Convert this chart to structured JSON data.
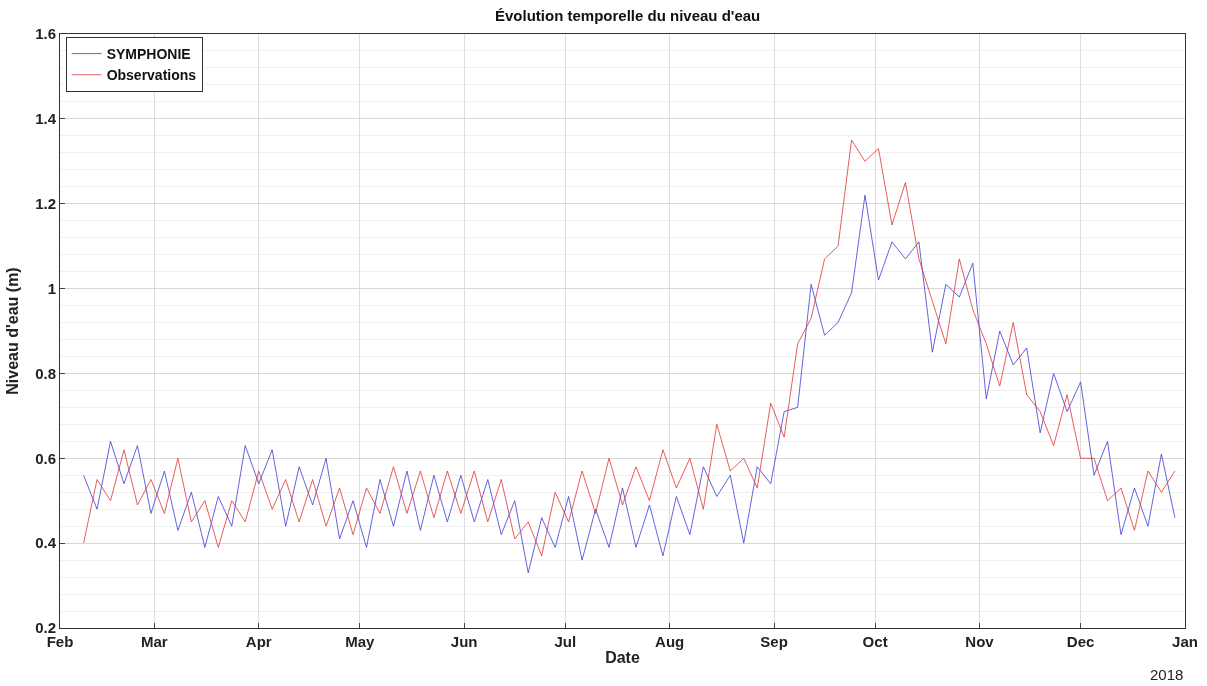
{
  "chart_data": {
    "type": "line",
    "title": "Évolution temporelle du niveau d'eau",
    "xlabel": "Date",
    "ylabel": "Niveau d'eau (m)",
    "x": [
      "2017-02-08",
      "2017-02-12",
      "2017-02-16",
      "2017-02-20",
      "2017-02-24",
      "2017-02-28",
      "2017-03-04",
      "2017-03-08",
      "2017-03-12",
      "2017-03-16",
      "2017-03-20",
      "2017-03-24",
      "2017-03-28",
      "2017-04-01",
      "2017-04-05",
      "2017-04-09",
      "2017-04-13",
      "2017-04-17",
      "2017-04-21",
      "2017-04-25",
      "2017-04-29",
      "2017-05-03",
      "2017-05-07",
      "2017-05-11",
      "2017-05-15",
      "2017-05-19",
      "2017-05-23",
      "2017-05-27",
      "2017-05-31",
      "2017-06-04",
      "2017-06-08",
      "2017-06-12",
      "2017-06-16",
      "2017-06-20",
      "2017-06-24",
      "2017-06-28",
      "2017-07-02",
      "2017-07-06",
      "2017-07-10",
      "2017-07-14",
      "2017-07-18",
      "2017-07-22",
      "2017-07-26",
      "2017-07-30",
      "2017-08-03",
      "2017-08-07",
      "2017-08-11",
      "2017-08-15",
      "2017-08-19",
      "2017-08-23",
      "2017-08-27",
      "2017-08-31",
      "2017-09-04",
      "2017-09-08",
      "2017-09-12",
      "2017-09-16",
      "2017-09-20",
      "2017-09-24",
      "2017-09-28",
      "2017-10-02",
      "2017-10-06",
      "2017-10-10",
      "2017-10-14",
      "2017-10-18",
      "2017-10-22",
      "2017-10-26",
      "2017-10-30",
      "2017-11-03",
      "2017-11-07",
      "2017-11-11",
      "2017-11-15",
      "2017-11-19",
      "2017-11-23",
      "2017-11-27",
      "2017-12-01",
      "2017-12-05",
      "2017-12-09",
      "2017-12-13",
      "2017-12-17",
      "2017-12-21",
      "2017-12-25",
      "2017-12-29"
    ],
    "series": [
      {
        "name": "SYMPHONIE",
        "color": "#3c3cd8",
        "values": [
          0.56,
          0.48,
          0.64,
          0.54,
          0.63,
          0.47,
          0.57,
          0.43,
          0.52,
          0.39,
          0.51,
          0.44,
          0.63,
          0.54,
          0.62,
          0.44,
          0.58,
          0.49,
          0.6,
          0.41,
          0.5,
          0.39,
          0.55,
          0.44,
          0.57,
          0.43,
          0.56,
          0.45,
          0.56,
          0.45,
          0.55,
          0.42,
          0.5,
          0.33,
          0.46,
          0.39,
          0.51,
          0.36,
          0.48,
          0.39,
          0.53,
          0.39,
          0.49,
          0.37,
          0.51,
          0.42,
          0.58,
          0.51,
          0.56,
          0.4,
          0.58,
          0.54,
          0.71,
          0.72,
          1.01,
          0.89,
          0.92,
          0.99,
          1.22,
          1.02,
          1.11,
          1.07,
          1.11,
          0.85,
          1.01,
          0.98,
          1.06,
          0.74,
          0.9,
          0.82,
          0.86,
          0.66,
          0.8,
          0.71,
          0.78,
          0.56,
          0.64,
          0.42,
          0.53,
          0.44,
          0.61,
          0.46
        ]
      },
      {
        "name": "Observations",
        "color": "#e03434",
        "values": [
          0.4,
          0.55,
          0.5,
          0.62,
          0.49,
          0.55,
          0.47,
          0.6,
          0.45,
          0.5,
          0.39,
          0.5,
          0.45,
          0.57,
          0.48,
          0.55,
          0.45,
          0.55,
          0.44,
          0.53,
          0.42,
          0.53,
          0.47,
          0.58,
          0.47,
          0.57,
          0.46,
          0.57,
          0.47,
          0.57,
          0.45,
          0.55,
          0.41,
          0.45,
          0.37,
          0.52,
          0.45,
          0.57,
          0.47,
          0.6,
          0.49,
          0.58,
          0.5,
          0.62,
          0.53,
          0.6,
          0.48,
          0.68,
          0.57,
          0.6,
          0.53,
          0.73,
          0.65,
          0.87,
          0.93,
          1.07,
          1.1,
          1.35,
          1.3,
          1.33,
          1.15,
          1.25,
          1.07,
          0.97,
          0.87,
          1.07,
          0.95,
          0.87,
          0.77,
          0.92,
          0.75,
          0.71,
          0.63,
          0.75,
          0.6,
          0.6,
          0.5,
          0.53,
          0.43,
          0.57,
          0.52,
          0.57
        ]
      }
    ],
    "xlim": [
      "2017-02-01",
      "2018-01-01"
    ],
    "xticks": [
      {
        "value": "2017-02-01",
        "label": "Feb"
      },
      {
        "value": "2017-03-01",
        "label": "Mar"
      },
      {
        "value": "2017-04-01",
        "label": "Apr"
      },
      {
        "value": "2017-05-01",
        "label": "May"
      },
      {
        "value": "2017-06-01",
        "label": "Jun"
      },
      {
        "value": "2017-07-01",
        "label": "Jul"
      },
      {
        "value": "2017-08-01",
        "label": "Aug"
      },
      {
        "value": "2017-09-01",
        "label": "Sep"
      },
      {
        "value": "2017-10-01",
        "label": "Oct"
      },
      {
        "value": "2017-11-01",
        "label": "Nov"
      },
      {
        "value": "2017-12-01",
        "label": "Dec"
      },
      {
        "value": "2018-01-01",
        "label": "Jan"
      }
    ],
    "ylim": [
      0.2,
      1.6
    ],
    "yticks": [
      0.2,
      0.4,
      0.6,
      0.8,
      1,
      1.2,
      1.4,
      1.6
    ],
    "annotations": [
      "2018"
    ],
    "grid": true,
    "legend": "top left",
    "marker": "none",
    "line_style": "solid"
  }
}
